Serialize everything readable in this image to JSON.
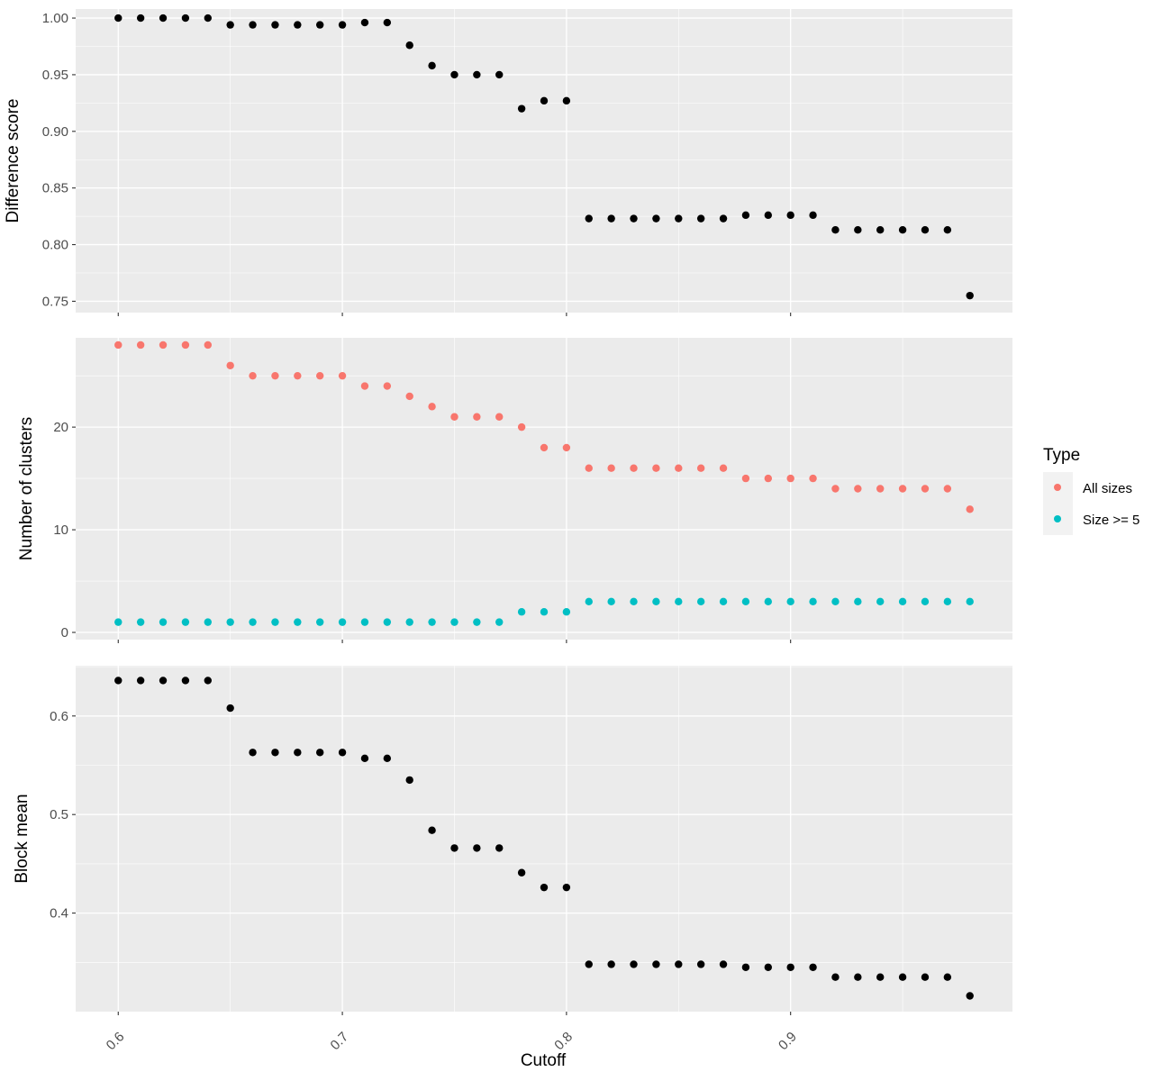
{
  "chart_data": [
    {
      "type": "scatter",
      "panel": "difference-score",
      "ylabel": "Difference score",
      "ylim": [
        0.74,
        1.008
      ],
      "yticks": [
        0.75,
        0.8,
        0.85,
        0.9,
        0.95,
        1.0
      ],
      "ytick_labels": [
        "0.75",
        "0.80",
        "0.85",
        "0.90",
        "0.95",
        "1.00"
      ],
      "series": [
        {
          "color": "#000000",
          "x": [
            0.6,
            0.61,
            0.62,
            0.63,
            0.64,
            0.65,
            0.66,
            0.67,
            0.68,
            0.69,
            0.7,
            0.71,
            0.72,
            0.73,
            0.74,
            0.75,
            0.76,
            0.77,
            0.78,
            0.79,
            0.8,
            0.81,
            0.82,
            0.83,
            0.84,
            0.85,
            0.86,
            0.87,
            0.88,
            0.89,
            0.9,
            0.91,
            0.92,
            0.93,
            0.94,
            0.95,
            0.96,
            0.97,
            0.98
          ],
          "y": [
            1.0,
            1.0,
            1.0,
            1.0,
            1.0,
            0.994,
            0.994,
            0.994,
            0.994,
            0.994,
            0.994,
            0.996,
            0.996,
            0.976,
            0.958,
            0.95,
            0.95,
            0.95,
            0.92,
            0.927,
            0.927,
            0.823,
            0.823,
            0.823,
            0.823,
            0.823,
            0.823,
            0.823,
            0.826,
            0.826,
            0.826,
            0.826,
            0.813,
            0.813,
            0.813,
            0.813,
            0.813,
            0.813,
            0.755
          ]
        }
      ]
    },
    {
      "type": "scatter",
      "panel": "number-of-clusters",
      "ylabel": "Number of clusters",
      "ylim": [
        -0.7,
        28.7
      ],
      "yticks": [
        0,
        10,
        20
      ],
      "ytick_labels": [
        "0",
        "10",
        "20"
      ],
      "series": [
        {
          "name": "All sizes",
          "color": "#F8766D",
          "x": [
            0.6,
            0.61,
            0.62,
            0.63,
            0.64,
            0.65,
            0.66,
            0.67,
            0.68,
            0.69,
            0.7,
            0.71,
            0.72,
            0.73,
            0.74,
            0.75,
            0.76,
            0.77,
            0.78,
            0.79,
            0.8,
            0.81,
            0.82,
            0.83,
            0.84,
            0.85,
            0.86,
            0.87,
            0.88,
            0.89,
            0.9,
            0.91,
            0.92,
            0.93,
            0.94,
            0.95,
            0.96,
            0.97,
            0.98
          ],
          "y": [
            28,
            28,
            28,
            28,
            28,
            26,
            25,
            25,
            25,
            25,
            25,
            24,
            24,
            23,
            22,
            21,
            21,
            21,
            20,
            18,
            18,
            16,
            16,
            16,
            16,
            16,
            16,
            16,
            15,
            15,
            15,
            15,
            14,
            14,
            14,
            14,
            14,
            14,
            12
          ]
        },
        {
          "name": "Size >= 5",
          "color": "#00BFC4",
          "x": [
            0.6,
            0.61,
            0.62,
            0.63,
            0.64,
            0.65,
            0.66,
            0.67,
            0.68,
            0.69,
            0.7,
            0.71,
            0.72,
            0.73,
            0.74,
            0.75,
            0.76,
            0.77,
            0.78,
            0.79,
            0.8,
            0.81,
            0.82,
            0.83,
            0.84,
            0.85,
            0.86,
            0.87,
            0.88,
            0.89,
            0.9,
            0.91,
            0.92,
            0.93,
            0.94,
            0.95,
            0.96,
            0.97,
            0.98
          ],
          "y": [
            1,
            1,
            1,
            1,
            1,
            1,
            1,
            1,
            1,
            1,
            1,
            1,
            1,
            1,
            1,
            1,
            1,
            1,
            2,
            2,
            2,
            3,
            3,
            3,
            3,
            3,
            3,
            3,
            3,
            3,
            3,
            3,
            3,
            3,
            3,
            3,
            3,
            3,
            3
          ]
        }
      ]
    },
    {
      "type": "scatter",
      "panel": "block-mean",
      "ylabel": "Block mean",
      "ylim": [
        0.3,
        0.651
      ],
      "yticks": [
        0.4,
        0.5,
        0.6
      ],
      "ytick_labels": [
        "0.4",
        "0.5",
        "0.6"
      ],
      "series": [
        {
          "color": "#000000",
          "x": [
            0.6,
            0.61,
            0.62,
            0.63,
            0.64,
            0.65,
            0.66,
            0.67,
            0.68,
            0.69,
            0.7,
            0.71,
            0.72,
            0.73,
            0.74,
            0.75,
            0.76,
            0.77,
            0.78,
            0.79,
            0.8,
            0.81,
            0.82,
            0.83,
            0.84,
            0.85,
            0.86,
            0.87,
            0.88,
            0.89,
            0.9,
            0.91,
            0.92,
            0.93,
            0.94,
            0.95,
            0.96,
            0.97,
            0.98
          ],
          "y": [
            0.636,
            0.636,
            0.636,
            0.636,
            0.636,
            0.608,
            0.563,
            0.563,
            0.563,
            0.563,
            0.563,
            0.557,
            0.557,
            0.535,
            0.484,
            0.466,
            0.466,
            0.466,
            0.441,
            0.426,
            0.426,
            0.348,
            0.348,
            0.348,
            0.348,
            0.348,
            0.348,
            0.348,
            0.345,
            0.345,
            0.345,
            0.345,
            0.335,
            0.335,
            0.335,
            0.335,
            0.335,
            0.335,
            0.316
          ]
        }
      ]
    }
  ],
  "shared_x": {
    "xlabel": "Cutoff",
    "xlim": [
      0.581,
      0.999
    ],
    "xticks": [
      0.6,
      0.7,
      0.8,
      0.9
    ],
    "xtick_labels": [
      "0.6",
      "0.7",
      "0.8",
      "0.9"
    ]
  },
  "legend": {
    "title": "Type",
    "placement": "right",
    "items": [
      {
        "label": "All sizes",
        "color": "#F8766D"
      },
      {
        "label": "Size >= 5",
        "color": "#00BFC4"
      }
    ]
  },
  "style": {
    "panel_background": "#EBEBEB",
    "grid_color": "#FFFFFF",
    "grid": true
  }
}
